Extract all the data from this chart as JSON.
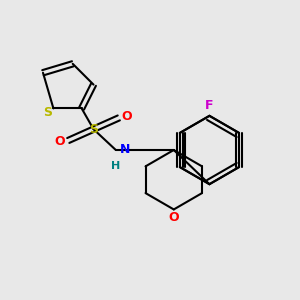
{
  "background_color": "#e8e8e8",
  "figsize": [
    3.0,
    3.0
  ],
  "dpi": 100,
  "colors": {
    "S": "#b8b800",
    "O": "#ff0000",
    "N": "#0000ff",
    "H": "#008080",
    "F": "#cc00cc",
    "bond": "#000000"
  }
}
